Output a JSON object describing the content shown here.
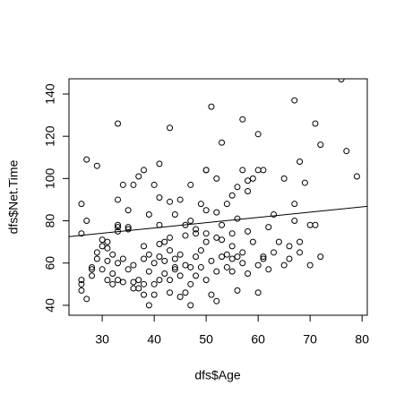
{
  "chart_data": {
    "type": "scatter",
    "xlabel": "dfs$Age",
    "ylabel": "dfs$Net.Time",
    "xlim": [
      23.6,
      81
    ],
    "ylim": [
      35.3,
      147.2
    ],
    "xticks": [
      30,
      40,
      50,
      60,
      70,
      80
    ],
    "yticks": [
      40,
      60,
      80,
      100,
      120,
      140
    ],
    "color": "#000000",
    "abline": {
      "intercept": 66.6,
      "slope": 0.25
    },
    "x": [
      76,
      51,
      67,
      57,
      71,
      33,
      60,
      43,
      72,
      53,
      77,
      27,
      29,
      41,
      79,
      68,
      60,
      61,
      50,
      50,
      57,
      65,
      38,
      37,
      34,
      36,
      40,
      47,
      52,
      58,
      69,
      26,
      33,
      43,
      41,
      45,
      49,
      54,
      55,
      56,
      63,
      67,
      44,
      47,
      52,
      50,
      48,
      53,
      56,
      35,
      39,
      27,
      26,
      31,
      30,
      33,
      35,
      38,
      41,
      43,
      46,
      48,
      50,
      52,
      55,
      58,
      59,
      62,
      64,
      66,
      68,
      70,
      72,
      70,
      66,
      63,
      61,
      60,
      60,
      62,
      57,
      55,
      56,
      54,
      52,
      52,
      51,
      50,
      49,
      48,
      47,
      46,
      46,
      45,
      44,
      44,
      43,
      42,
      42,
      41,
      41,
      40,
      40,
      39,
      39,
      38,
      38,
      37,
      36,
      36,
      35,
      34,
      33,
      33,
      32,
      32,
      31,
      31,
      30,
      30,
      29,
      28,
      28,
      28,
      27,
      26,
      26,
      26,
      29,
      31,
      32,
      34,
      37,
      39,
      42,
      44,
      47,
      48,
      49,
      50,
      53,
      53,
      55,
      56,
      57,
      58,
      61,
      65,
      67,
      68,
      71,
      43,
      45,
      51,
      40,
      41,
      43,
      45,
      47,
      36,
      38,
      58,
      59,
      46,
      54,
      55,
      33,
      33,
      35
    ],
    "values": [
      147,
      134,
      137,
      128,
      126,
      126,
      121,
      124,
      116,
      117,
      113,
      109,
      106,
      107,
      101,
      108,
      104,
      104,
      104,
      104,
      104,
      100,
      104,
      101,
      97,
      97,
      97,
      97,
      100,
      99,
      98,
      88,
      90,
      89,
      91,
      90,
      88,
      88,
      92,
      96,
      83,
      88,
      83,
      80,
      84,
      85,
      74,
      78,
      81,
      85,
      83,
      80,
      74,
      70,
      71,
      75,
      76,
      68,
      78,
      72,
      73,
      76,
      70,
      72,
      74,
      75,
      70,
      77,
      70,
      68,
      70,
      78,
      63,
      59,
      62,
      65,
      63,
      59,
      46,
      57,
      60,
      56,
      63,
      58,
      56,
      42,
      61,
      52,
      58,
      54,
      50,
      46,
      59,
      64,
      62,
      58,
      66,
      61,
      55,
      69,
      52,
      50,
      45,
      40,
      56,
      62,
      50,
      52,
      48,
      59,
      57,
      62,
      52,
      60,
      64,
      55,
      61,
      52,
      57,
      68,
      65,
      58,
      54,
      57,
      43,
      47,
      52,
      50,
      62,
      67,
      50,
      51,
      48,
      64,
      70,
      57,
      40,
      63,
      66,
      74,
      63,
      71,
      68,
      47,
      65,
      55,
      62,
      59,
      80,
      65,
      78,
      46,
      44,
      45,
      60,
      63,
      52,
      54,
      58,
      51,
      45,
      94,
      100,
      78,
      64,
      62,
      78,
      77,
      77
    ]
  }
}
